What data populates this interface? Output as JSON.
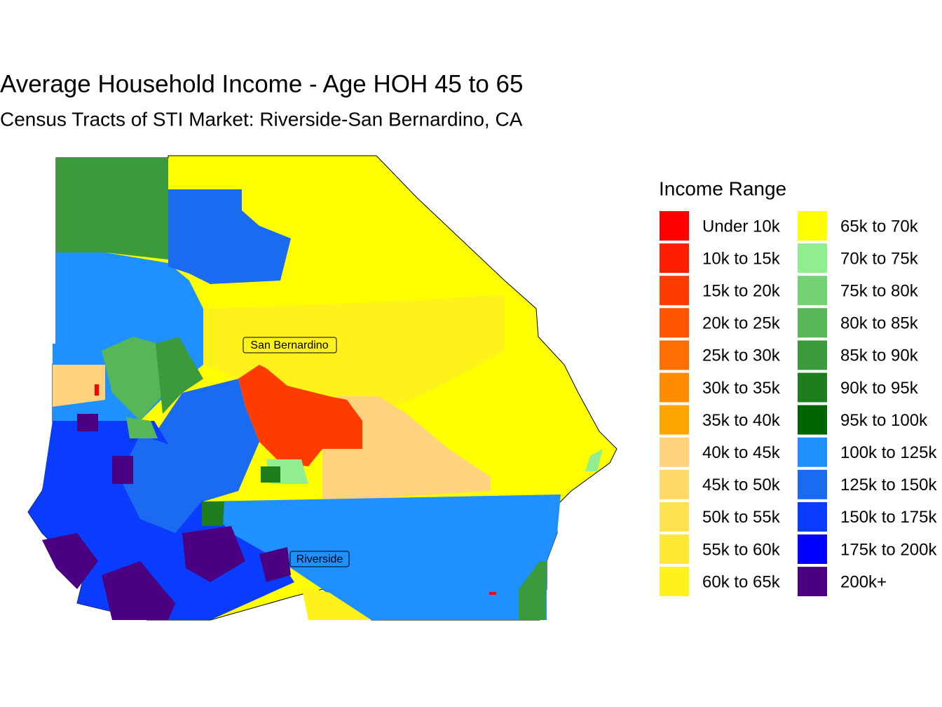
{
  "title": "Average Household Income - Age HOH 45 to 65",
  "subtitle": "Census Tracts of STI Market: Riverside-San Bernardino, CA",
  "places": [
    "San Bernardino",
    "Riverside"
  ],
  "legend": {
    "title": "Income Range",
    "items": [
      {
        "label": "Under 10k",
        "color": "#ff0000"
      },
      {
        "label": "10k to 15k",
        "color": "#ff1e00"
      },
      {
        "label": "15k to 20k",
        "color": "#ff3c00"
      },
      {
        "label": "20k to 25k",
        "color": "#ff5500"
      },
      {
        "label": "25k to 30k",
        "color": "#ff6e00"
      },
      {
        "label": "30k to 35k",
        "color": "#ff8c00"
      },
      {
        "label": "35k to 40k",
        "color": "#ffa500"
      },
      {
        "label": "40k to 45k",
        "color": "#ffd27f"
      },
      {
        "label": "45k to 50k",
        "color": "#ffd966"
      },
      {
        "label": "50k to 55k",
        "color": "#ffe24d"
      },
      {
        "label": "55k to 60k",
        "color": "#ffe833"
      },
      {
        "label": "60k to 65k",
        "color": "#fff21a"
      },
      {
        "label": "65k to 70k",
        "color": "#ffff00"
      },
      {
        "label": "70k to 75k",
        "color": "#90ee90"
      },
      {
        "label": "75k to 80k",
        "color": "#74d274"
      },
      {
        "label": "80k to 85k",
        "color": "#57b657"
      },
      {
        "label": "85k to 90k",
        "color": "#3b9a3b"
      },
      {
        "label": "90k to 95k",
        "color": "#1e7e1e"
      },
      {
        "label": "95k to 100k",
        "color": "#006400"
      },
      {
        "label": "100k to 125k",
        "color": "#1e90ff"
      },
      {
        "label": "125k to 150k",
        "color": "#1a6bf0"
      },
      {
        "label": "150k to 175k",
        "color": "#0a3cff"
      },
      {
        "label": "175k to 200k",
        "color": "#0000ff"
      },
      {
        "label": "200k+",
        "color": "#4b0082"
      }
    ]
  }
}
